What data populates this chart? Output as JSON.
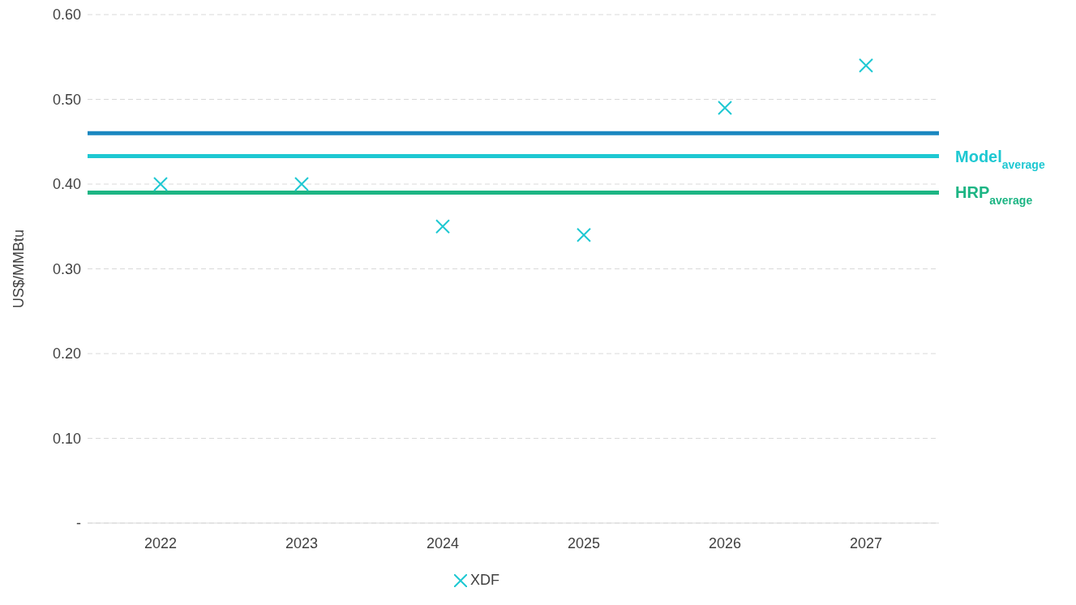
{
  "chart_data": {
    "type": "scatter",
    "ylabel": "US$/MMBtu",
    "categories": [
      "2022",
      "2023",
      "2024",
      "2025",
      "2026",
      "2027"
    ],
    "series": [
      {
        "name": "XDF",
        "color": "#1ec8d2",
        "values": [
          0.4,
          0.4,
          0.35,
          0.34,
          0.49,
          0.54
        ]
      }
    ],
    "marker": "cross",
    "ylim": [
      0,
      0.6
    ],
    "yticks": [
      {
        "value": 0,
        "label": "-"
      },
      {
        "value": 0.1,
        "label": "0.10"
      },
      {
        "value": 0.2,
        "label": "0.20"
      },
      {
        "value": 0.3,
        "label": "0.30"
      },
      {
        "value": 0.4,
        "label": "0.40"
      },
      {
        "value": 0.5,
        "label": "0.50"
      },
      {
        "value": 0.6,
        "label": "0.60"
      }
    ],
    "grid": "y",
    "legend": "bottom",
    "ref_lines": [
      {
        "axis": "y",
        "value": 0.46,
        "color": "#1a87c0"
      },
      {
        "axis": "y",
        "value": 0.433,
        "label": "Model$_{average}$",
        "color": "#1ec8d2"
      },
      {
        "axis": "y",
        "value": 0.39,
        "label": "HRP$_{average}$",
        "color": "#1db584"
      }
    ]
  }
}
